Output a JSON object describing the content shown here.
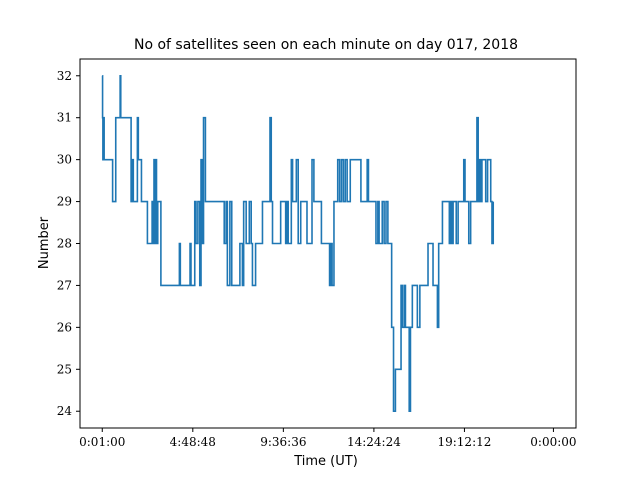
{
  "chart_data": {
    "type": "line",
    "title": "No of satellites seen on each minute on day 017, 2018",
    "xlabel": "Time (UT)",
    "ylabel": "Number",
    "x_ticks": [
      "0:01:00",
      "4:48:48",
      "9:36:36",
      "14:24:24",
      "19:12:12",
      "0:00:00"
    ],
    "x_tick_values_minutes": [
      1,
      289.8,
      578.6,
      867.4,
      1156.2,
      1440
    ],
    "xlim": [
      -70,
      1512
    ],
    "ylim": [
      23.6,
      32.4
    ],
    "y_ticks": [
      24,
      25,
      26,
      27,
      28,
      29,
      30,
      31,
      32
    ],
    "grid": false,
    "line_color": "#1f77b4",
    "series": [
      {
        "x_unit": "minutes since 0:00 UT",
        "points": [
          [
            1,
            32
          ],
          [
            2,
            31
          ],
          [
            3,
            30
          ],
          [
            6,
            31
          ],
          [
            7,
            30
          ],
          [
            30,
            30
          ],
          [
            34,
            29
          ],
          [
            42,
            29
          ],
          [
            44,
            31
          ],
          [
            48,
            31
          ],
          [
            54,
            31
          ],
          [
            58,
            32
          ],
          [
            60,
            31
          ],
          [
            64,
            31
          ],
          [
            88,
            31
          ],
          [
            93,
            29
          ],
          [
            97,
            30
          ],
          [
            100,
            29
          ],
          [
            110,
            29
          ],
          [
            113,
            31
          ],
          [
            116,
            30
          ],
          [
            120,
            30
          ],
          [
            126,
            29
          ],
          [
            140,
            29
          ],
          [
            145,
            28
          ],
          [
            155,
            28
          ],
          [
            160,
            29
          ],
          [
            163,
            28
          ],
          [
            166,
            30
          ],
          [
            168,
            28
          ],
          [
            171,
            30
          ],
          [
            174,
            28
          ],
          [
            178,
            29
          ],
          [
            184,
            29
          ],
          [
            188,
            27
          ],
          [
            196,
            27
          ],
          [
            206,
            27
          ],
          [
            244,
            27
          ],
          [
            247,
            28
          ],
          [
            250,
            27
          ],
          [
            278,
            27
          ],
          [
            281,
            28
          ],
          [
            284,
            27
          ],
          [
            292,
            27
          ],
          [
            296,
            29
          ],
          [
            300,
            28
          ],
          [
            306,
            29
          ],
          [
            312,
            27
          ],
          [
            316,
            30
          ],
          [
            320,
            28
          ],
          [
            324,
            31
          ],
          [
            330,
            29
          ],
          [
            340,
            29
          ],
          [
            348,
            29
          ],
          [
            356,
            29
          ],
          [
            380,
            29
          ],
          [
            390,
            28
          ],
          [
            396,
            29
          ],
          [
            400,
            27
          ],
          [
            408,
            29
          ],
          [
            414,
            27
          ],
          [
            420,
            27
          ],
          [
            440,
            28
          ],
          [
            448,
            27
          ],
          [
            452,
            29
          ],
          [
            460,
            28
          ],
          [
            466,
            28
          ],
          [
            470,
            29
          ],
          [
            476,
            28
          ],
          [
            480,
            27
          ],
          [
            484,
            27
          ],
          [
            490,
            28
          ],
          [
            508,
            28
          ],
          [
            512,
            29
          ],
          [
            532,
            29
          ],
          [
            536,
            31
          ],
          [
            540,
            29
          ],
          [
            544,
            28
          ],
          [
            566,
            28
          ],
          [
            570,
            29
          ],
          [
            582,
            29
          ],
          [
            586,
            28
          ],
          [
            590,
            29
          ],
          [
            594,
            28
          ],
          [
            600,
            28
          ],
          [
            604,
            30
          ],
          [
            608,
            29
          ],
          [
            612,
            29
          ],
          [
            620,
            30
          ],
          [
            626,
            28
          ],
          [
            634,
            29
          ],
          [
            650,
            29
          ],
          [
            654,
            28
          ],
          [
            664,
            28
          ],
          [
            670,
            30
          ],
          [
            676,
            29
          ],
          [
            680,
            29
          ],
          [
            700,
            28
          ],
          [
            720,
            28
          ],
          [
            726,
            27
          ],
          [
            730,
            28
          ],
          [
            734,
            27
          ],
          [
            740,
            29
          ],
          [
            746,
            29
          ],
          [
            752,
            30
          ],
          [
            758,
            29
          ],
          [
            764,
            30
          ],
          [
            770,
            29
          ],
          [
            776,
            30
          ],
          [
            782,
            29
          ],
          [
            788,
            29
          ],
          [
            792,
            30
          ],
          [
            820,
            30
          ],
          [
            826,
            29
          ],
          [
            840,
            29
          ],
          [
            846,
            30
          ],
          [
            850,
            29
          ],
          [
            870,
            29
          ],
          [
            874,
            28
          ],
          [
            880,
            29
          ],
          [
            884,
            28
          ],
          [
            890,
            28
          ],
          [
            894,
            29
          ],
          [
            900,
            28
          ],
          [
            906,
            29
          ],
          [
            912,
            28
          ],
          [
            918,
            28
          ],
          [
            924,
            26
          ],
          [
            930,
            24
          ],
          [
            936,
            25
          ],
          [
            950,
            25
          ],
          [
            954,
            27
          ],
          [
            958,
            26
          ],
          [
            964,
            27
          ],
          [
            968,
            26
          ],
          [
            976,
            26
          ],
          [
            980,
            24
          ],
          [
            984,
            26
          ],
          [
            990,
            27
          ],
          [
            1002,
            27
          ],
          [
            1006,
            26
          ],
          [
            1010,
            26
          ],
          [
            1014,
            27
          ],
          [
            1020,
            27
          ],
          [
            1032,
            27
          ],
          [
            1040,
            28
          ],
          [
            1046,
            28
          ],
          [
            1050,
            28
          ],
          [
            1056,
            27
          ],
          [
            1064,
            27
          ],
          [
            1070,
            26
          ],
          [
            1074,
            28
          ],
          [
            1078,
            28
          ],
          [
            1086,
            29
          ],
          [
            1104,
            29
          ],
          [
            1108,
            28
          ],
          [
            1112,
            29
          ],
          [
            1116,
            28
          ],
          [
            1120,
            29
          ],
          [
            1126,
            29
          ],
          [
            1130,
            28
          ],
          [
            1136,
            29
          ],
          [
            1148,
            29
          ],
          [
            1154,
            30
          ],
          [
            1158,
            29
          ],
          [
            1166,
            29
          ],
          [
            1170,
            28
          ],
          [
            1176,
            29
          ],
          [
            1182,
            29
          ],
          [
            1190,
            29
          ],
          [
            1196,
            31
          ],
          [
            1200,
            29
          ],
          [
            1204,
            30
          ],
          [
            1208,
            29
          ],
          [
            1212,
            30
          ],
          [
            1218,
            30
          ],
          [
            1224,
            29
          ],
          [
            1230,
            30
          ],
          [
            1236,
            30
          ],
          [
            1240,
            29
          ],
          [
            1244,
            28
          ],
          [
            1248,
            29
          ]
        ]
      }
    ]
  }
}
